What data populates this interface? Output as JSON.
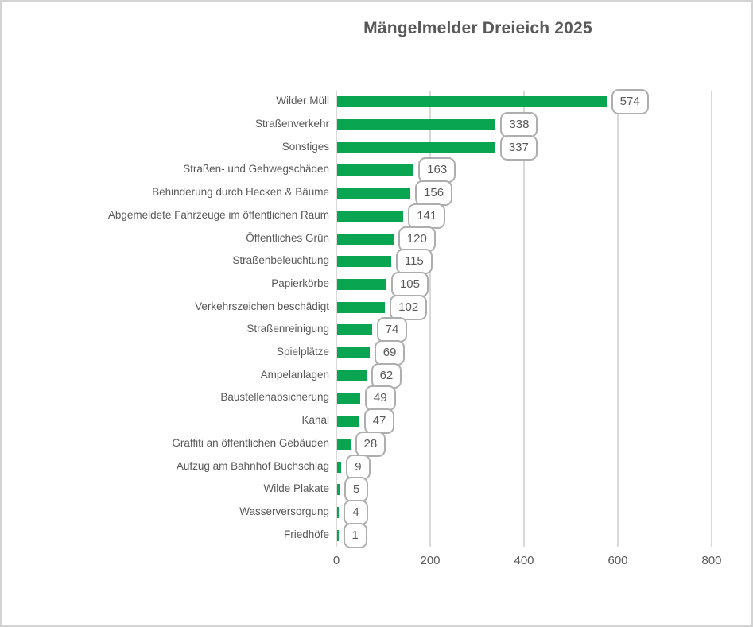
{
  "chart_data": {
    "type": "bar",
    "orientation": "horizontal",
    "title": "Mängelmelder Dreieich 2025",
    "categories": [
      "Wilder Müll",
      "Straßenverkehr",
      "Sonstiges",
      "Straßen- und Gehwegschäden",
      "Behinderung durch Hecken & Bäume",
      "Abgemeldete Fahrzeuge im öffentlichen Raum",
      "Öffentliches Grün",
      "Straßenbeleuchtung",
      "Papierkörbe",
      "Verkehrszeichen beschädigt",
      "Straßenreinigung",
      "Spielplätze",
      "Ampelanlagen",
      "Baustellenabsicherung",
      "Kanal",
      "Graffiti an öffentlichen Gebäuden",
      "Aufzug am Bahnhof Buchschlag",
      "Wilde Plakate",
      "Wasserversorgung",
      "Friedhöfe"
    ],
    "values": [
      574,
      338,
      337,
      163,
      156,
      141,
      120,
      115,
      105,
      102,
      74,
      69,
      62,
      49,
      47,
      28,
      9,
      5,
      4,
      1
    ],
    "xlabel": "",
    "ylabel": "",
    "xlim": [
      0,
      800
    ],
    "x_ticks": [
      0,
      200,
      400,
      600,
      800
    ],
    "grid": "vertical-only",
    "legend": "none",
    "data_label_style": "rounded-callout-boxes"
  },
  "colors": {
    "bar": "#0aa550",
    "text": "#595959",
    "gridline": "#d9d9d9",
    "callout_border": "#aeaeae",
    "callout_background": "#ffffff",
    "frame_border": "#d3d3d3",
    "background": "#ffffff"
  }
}
